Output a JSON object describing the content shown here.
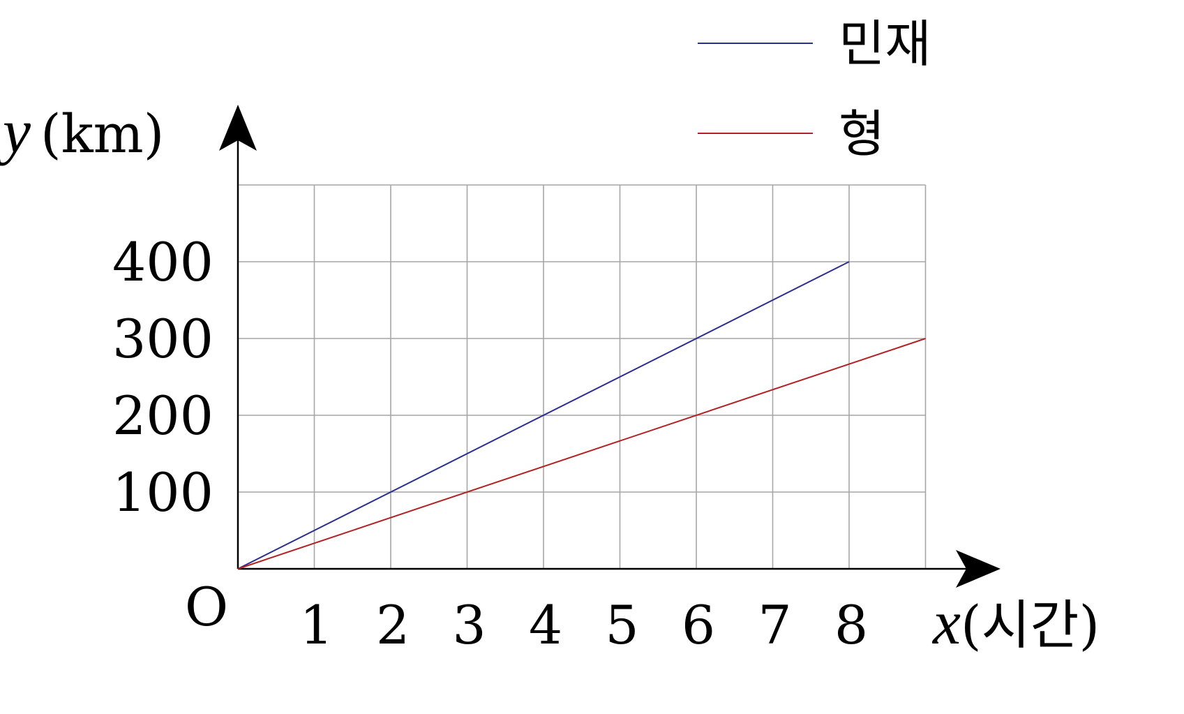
{
  "chart_data": {
    "type": "line",
    "xlabel_var": "x",
    "xlabel_unit": "(시간)",
    "ylabel_var": "y",
    "ylabel_unit": "(km)",
    "origin_label": "O",
    "xlim": [
      0,
      9
    ],
    "ylim": [
      0,
      500
    ],
    "x_ticks": [
      1,
      2,
      3,
      4,
      5,
      6,
      7,
      8
    ],
    "x_tick_labels": [
      "1",
      "2",
      "3",
      "4",
      "5",
      "6",
      "7",
      "8"
    ],
    "y_ticks": [
      100,
      200,
      300,
      400
    ],
    "y_tick_labels": [
      "100",
      "200",
      "300",
      "400"
    ],
    "grid": true,
    "legend_position": "top-right",
    "series": [
      {
        "name": "민재",
        "color": "#2b2f8f",
        "x": [
          0,
          8
        ],
        "y": [
          0,
          400
        ]
      },
      {
        "name": "형",
        "color": "#b22222",
        "x": [
          0,
          9
        ],
        "y": [
          0,
          300
        ]
      }
    ],
    "colors": {
      "grid": "#a6a6a6",
      "axis": "#000000"
    }
  }
}
